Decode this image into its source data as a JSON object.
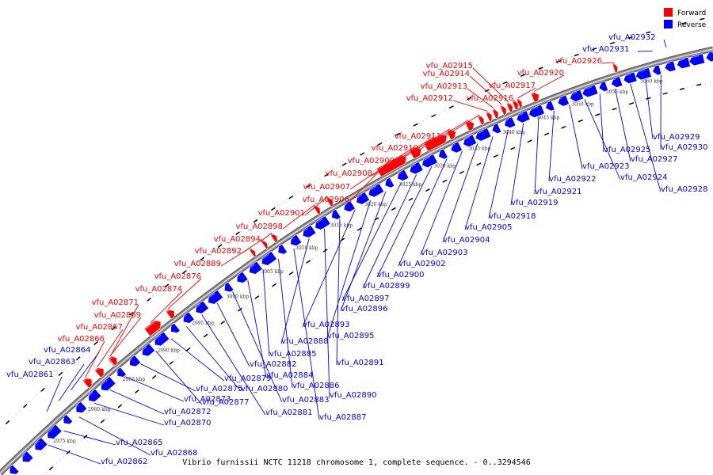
{
  "title": "Vibrio furnissii NCTC 11218 chromosome 1, complete sequence. - 0..3294546",
  "legend": [
    {
      "label": "Forward",
      "color": "#ff0000"
    },
    {
      "label": "Reverse",
      "color": "#0000ff"
    }
  ],
  "colors": {
    "forward": "#ff0000",
    "reverse": "#0000ff",
    "backbone": "#888888"
  },
  "ticks": [
    "2975 kbp",
    "2980 kbp",
    "2985 kbp",
    "2990 kbp",
    "2995 kbp",
    "3000 kbp",
    "3005 kbp",
    "3010 kbp",
    "3015 kbp",
    "3020 kbp",
    "3025 kbp",
    "3030 kbp",
    "3035 kbp",
    "3040 kbp",
    "3045 kbp",
    "3050 kbp",
    "3055 kbp",
    "3060 kbp"
  ],
  "forward_genes": [
    "vfu_A02866",
    "vfu_A02867",
    "vfu_A02869",
    "vfu_A02871",
    "vfu_A02874",
    "vfu_A02876",
    "vfu_A02889",
    "vfu_A02892",
    "vfu_A02894",
    "vfu_A02898",
    "vfu_A02901",
    "vfu_A02906",
    "vfu_A02907",
    "vfu_A02908",
    "vfu_A02909",
    "vfu_A02910",
    "vfu_A02911",
    "vfu_A02912",
    "vfu_A02913",
    "vfu_A02914",
    "vfu_A02915",
    "vfu_A02916",
    "vfu_A02917",
    "vfu_A02920",
    "vfu_A02926"
  ],
  "reverse_genes_upper": [
    "vfu_A02861",
    "vfu_A02863",
    "vfu_A02864",
    "vfu_A02931",
    "vfu_A02932"
  ],
  "reverse_genes_lower": [
    "vfu_A02862",
    "vfu_A02865",
    "vfu_A02868",
    "vfu_A02870",
    "vfu_A02872",
    "vfu_A02873",
    "vfu_A02875",
    "vfu_A02877",
    "vfu_A02879",
    "vfu_A02880",
    "vfu_A02881",
    "vfu_A02882",
    "vfu_A02883",
    "vfu_A02884",
    "vfu_A02885",
    "vfu_A02886",
    "vfu_A02887",
    "vfu_A02888",
    "vfu_A02890",
    "vfu_A02891",
    "vfu_A02893",
    "vfu_A02895",
    "vfu_A02896",
    "vfu_A02897",
    "vfu_A02899",
    "vfu_A02900",
    "vfu_A02902",
    "vfu_A02903",
    "vfu_A02904",
    "vfu_A02905",
    "vfu_A02918",
    "vfu_A02919",
    "vfu_A02921",
    "vfu_A02922",
    "vfu_A02923",
    "vfu_A02924",
    "vfu_A02925",
    "vfu_A02927",
    "vfu_A02928",
    "vfu_A02929",
    "vfu_A02930"
  ]
}
